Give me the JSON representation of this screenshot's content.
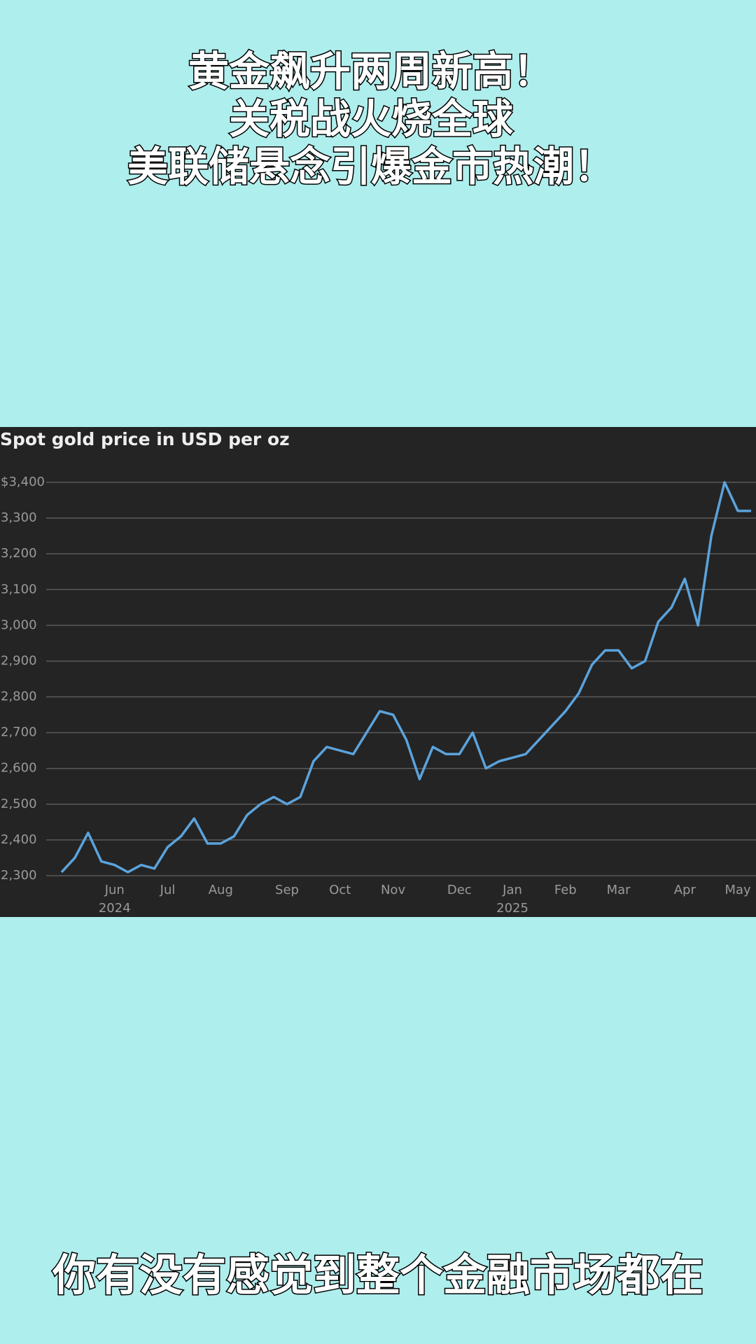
{
  "header": {
    "lines": [
      "黄金飙升两周新高！",
      "关税战火烧全球",
      "美联储悬念引爆金市热潮！"
    ]
  },
  "caption": "你有没有感觉到整个金融市场都在",
  "chart_data": {
    "type": "line",
    "title": "Spot gold price in USD per oz",
    "color": "#5ba3dc",
    "grid": true,
    "categories": [
      null,
      null,
      null,
      null,
      "Jun\n2024",
      null,
      null,
      null,
      "Jul",
      null,
      null,
      null,
      "Aug",
      null,
      null,
      null,
      null,
      "Sep",
      null,
      null,
      null,
      "Oct",
      null,
      null,
      null,
      "Nov",
      null,
      null,
      null,
      null,
      "Dec",
      null,
      null,
      null,
      "Jan\n2025",
      null,
      null,
      null,
      "Feb",
      null,
      null,
      null,
      "Mar",
      null,
      null,
      null,
      null,
      "Apr",
      null,
      null,
      null,
      "May",
      null
    ],
    "values": [
      2310,
      2350,
      2420,
      2340,
      2330,
      2310,
      2330,
      2320,
      2380,
      2410,
      2460,
      2390,
      2390,
      2410,
      2470,
      2500,
      2520,
      2500,
      2520,
      2620,
      2660,
      2650,
      2640,
      2700,
      2760,
      2750,
      2680,
      2570,
      2660,
      2640,
      2640,
      2700,
      2600,
      2620,
      2630,
      2640,
      2680,
      2720,
      2760,
      2810,
      2890,
      2930,
      2930,
      2880,
      2900,
      3010,
      3050,
      3130,
      3000,
      3250,
      3400,
      3320,
      3320
    ],
    "ylim": [
      2300,
      3400
    ],
    "yticks": [
      {
        "value": 2300,
        "label": "2,300"
      },
      {
        "value": 2400,
        "label": "2,400"
      },
      {
        "value": 2500,
        "label": "2,500"
      },
      {
        "value": 2600,
        "label": "2,600"
      },
      {
        "value": 2700,
        "label": "2,700"
      },
      {
        "value": 2800,
        "label": "2,800"
      },
      {
        "value": 2900,
        "label": "2,900"
      },
      {
        "value": 3000,
        "label": "3,000"
      },
      {
        "value": 3100,
        "label": "3,100"
      },
      {
        "value": 3200,
        "label": "3,200"
      },
      {
        "value": 3300,
        "label": "3,300"
      },
      {
        "value": 3400,
        "label": "$3,400"
      }
    ]
  }
}
